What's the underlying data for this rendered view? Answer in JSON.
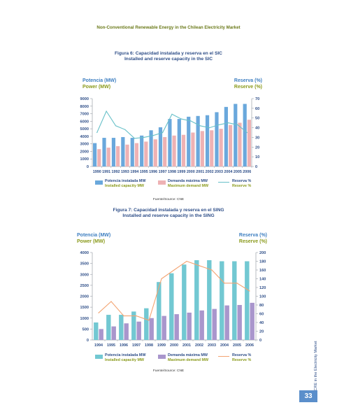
{
  "header": {
    "title": "Non-Conventional Renewable Energy in the Chilean Electricity Market"
  },
  "side_caption": "NCRE in the Electricity Market",
  "page_number": "33",
  "colors": {
    "capacity_sic": "#6aa8dc",
    "demand_sic": "#eeb2b4",
    "reserve_sic": "#67c0c8",
    "capacity_sing": "#72c8d2",
    "demand_sing": "#a996cc",
    "reserve_sing": "#f3a472",
    "title": "#2e4e88",
    "accent": "#8a9a1c",
    "page_badge": "#5b8fcb"
  },
  "chart_data": [
    {
      "type": "bar",
      "title": "Figura 6: Capacidad instalada y reserva en el SIC",
      "subtitle": "Installed and reserve capacity in the SIC",
      "ylabel": "Potencia (MW)",
      "ylabel_en": "Power (MW)",
      "y2label": "Reserva (%)",
      "y2label_en": "Reserve (%)",
      "ylim": [
        0,
        9000
      ],
      "yticks": [
        0,
        1000,
        2000,
        3000,
        4000,
        5000,
        6000,
        7000,
        8000,
        9000
      ],
      "y2lim": [
        0,
        70
      ],
      "y2ticks": [
        0,
        10,
        20,
        30,
        40,
        50,
        60,
        70
      ],
      "categories": [
        "1990",
        "1991",
        "1992",
        "1993",
        "1994",
        "1995",
        "1996",
        "1997",
        "1998",
        "1999",
        "2000",
        "2001",
        "2002",
        "2003",
        "2004",
        "2005",
        "2006"
      ],
      "series": [
        {
          "name": "Potencia instalada MW",
          "name_en": "Installed capacity MW",
          "kind": "bar",
          "values": [
            3100,
            3800,
            3800,
            3900,
            3800,
            4100,
            4800,
            5200,
            6300,
            6300,
            6600,
            6700,
            6800,
            7200,
            7900,
            8300,
            8300
          ]
        },
        {
          "name": "Demanda máxima MW",
          "name_en": "Maximum demand MW",
          "kind": "bar",
          "values": [
            2300,
            2500,
            2700,
            2900,
            3100,
            3300,
            3600,
            3900,
            4100,
            4200,
            4500,
            4700,
            4800,
            5000,
            5500,
            5800,
            6200
          ]
        },
        {
          "name": "Reserva %",
          "name_en": "Reserve %",
          "kind": "line",
          "values": [
            35,
            57,
            42,
            38,
            29,
            30,
            32,
            35,
            54,
            49,
            47,
            42,
            40,
            43,
            45,
            43,
            35
          ]
        }
      ],
      "source": "Fuente/Source: CNE"
    },
    {
      "type": "bar",
      "title": "Figura 7: Capacidad instalada y reserva en el SING",
      "subtitle": "Installed and reserve capacity in the SING",
      "ylabel": "Potencia (MW)",
      "ylabel_en": "Power (MW)",
      "y2label": "Reserva (%)",
      "y2label_en": "Reserve (%)",
      "ylim": [
        0,
        4000
      ],
      "yticks": [
        0,
        500,
        1000,
        1500,
        2000,
        2500,
        3000,
        3500,
        4000
      ],
      "y2lim": [
        0,
        200
      ],
      "y2ticks": [
        0,
        20,
        40,
        60,
        80,
        100,
        120,
        140,
        160,
        180,
        200
      ],
      "categories": [
        "1994",
        "1995",
        "1996",
        "1997",
        "1998",
        "1999",
        "2000",
        "2001",
        "2002",
        "2003",
        "2004",
        "2005",
        "2006"
      ],
      "series": [
        {
          "name": "Potencia instalada MW",
          "name_en": "Installed capacity MW",
          "kind": "bar",
          "values": [
            800,
            1150,
            1150,
            1300,
            1450,
            2650,
            3050,
            3450,
            3650,
            3650,
            3600,
            3600,
            3600
          ]
        },
        {
          "name": "Demanda máxima MW",
          "name_en": "Maximum demand MW",
          "kind": "bar",
          "values": [
            500,
            620,
            760,
            840,
            1000,
            1100,
            1180,
            1250,
            1350,
            1420,
            1580,
            1600,
            1700
          ]
        },
        {
          "name": "Reserva %",
          "name_en": "Reserve %",
          "kind": "line",
          "values": [
            62,
            88,
            55,
            55,
            45,
            140,
            160,
            180,
            170,
            160,
            130,
            130,
            112
          ]
        }
      ],
      "source": "Fuente/Source: CNE"
    }
  ]
}
